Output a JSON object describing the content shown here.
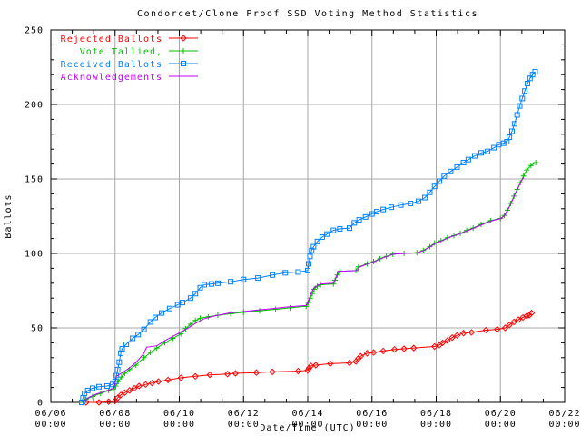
{
  "chart_data": {
    "type": "line",
    "title": "Condorcet/Clone Proof SSD Voting Method Statistics",
    "xlabel": "Date/Time (UTC)",
    "ylabel": "Ballots",
    "x_unit_days_since": "06/06 00:00",
    "xlim": [
      0,
      16
    ],
    "ylim": [
      0,
      250
    ],
    "grid": true,
    "grid_color": "#a8a8a8",
    "border_color": "#000000",
    "legend_position": "top-left-inside",
    "y_ticks": [
      "0",
      "50",
      "100",
      "150",
      "200",
      "250"
    ],
    "y_tick_values": [
      0,
      50,
      100,
      150,
      200,
      250
    ],
    "y_minor_step": 10,
    "x_ticks": [
      {
        "day": 0,
        "label": "06/06",
        "sublabel": "00:00"
      },
      {
        "day": 2,
        "label": "06/08",
        "sublabel": "00:00"
      },
      {
        "day": 4,
        "label": "06/10",
        "sublabel": "00:00"
      },
      {
        "day": 6,
        "label": "06/12",
        "sublabel": "00:00"
      },
      {
        "day": 8,
        "label": "06/14",
        "sublabel": "00:00"
      },
      {
        "day": 10,
        "label": "06/16",
        "sublabel": "00:00"
      },
      {
        "day": 12,
        "label": "06/18",
        "sublabel": "00:00"
      },
      {
        "day": 14,
        "label": "06/20",
        "sublabel": "00:00"
      },
      {
        "day": 16,
        "label": "06/22",
        "sublabel": "00:00"
      }
    ],
    "x_minor_ticks_per_major": 2,
    "series": [
      {
        "name": "Rejected Ballots",
        "color": "#ff0000",
        "marker": "diamond",
        "points": [
          [
            1.1,
            0
          ],
          [
            1.5,
            0
          ],
          [
            1.8,
            0.5
          ],
          [
            2.0,
            1
          ],
          [
            2.08,
            3
          ],
          [
            2.18,
            5
          ],
          [
            2.3,
            6.5
          ],
          [
            2.45,
            8
          ],
          [
            2.6,
            9.5
          ],
          [
            2.75,
            11
          ],
          [
            2.95,
            12
          ],
          [
            3.15,
            13
          ],
          [
            3.35,
            14
          ],
          [
            3.65,
            15
          ],
          [
            4.05,
            16.5
          ],
          [
            4.5,
            17.5
          ],
          [
            4.95,
            18.5
          ],
          [
            5.5,
            19
          ],
          [
            5.75,
            19.5
          ],
          [
            6.4,
            20
          ],
          [
            6.9,
            20.5
          ],
          [
            7.7,
            21
          ],
          [
            8.0,
            21.5
          ],
          [
            8.04,
            23
          ],
          [
            8.1,
            24.5
          ],
          [
            8.25,
            25
          ],
          [
            8.7,
            26
          ],
          [
            9.3,
            26.5
          ],
          [
            9.5,
            27.5
          ],
          [
            9.58,
            29.5
          ],
          [
            9.65,
            31
          ],
          [
            9.85,
            33
          ],
          [
            10.05,
            33.5
          ],
          [
            10.35,
            34.5
          ],
          [
            10.7,
            35.5
          ],
          [
            11.0,
            36
          ],
          [
            11.3,
            36.5
          ],
          [
            11.95,
            37.5
          ],
          [
            12.1,
            38.5
          ],
          [
            12.2,
            40
          ],
          [
            12.35,
            41.5
          ],
          [
            12.5,
            43.5
          ],
          [
            12.65,
            45
          ],
          [
            12.85,
            46.5
          ],
          [
            13.1,
            47
          ],
          [
            13.55,
            48.5
          ],
          [
            13.9,
            49
          ],
          [
            14.15,
            50
          ],
          [
            14.28,
            52
          ],
          [
            14.42,
            54
          ],
          [
            14.56,
            55.5
          ],
          [
            14.7,
            57
          ],
          [
            14.82,
            58
          ],
          [
            14.9,
            58.5
          ],
          [
            14.97,
            60
          ]
        ]
      },
      {
        "name": "Vote Tallied,",
        "color": "#00c000",
        "marker": "plus",
        "points": [
          [
            1.0,
            0
          ],
          [
            1.1,
            2
          ],
          [
            1.3,
            4
          ],
          [
            1.55,
            6
          ],
          [
            1.8,
            8
          ],
          [
            1.95,
            9
          ],
          [
            2.02,
            11
          ],
          [
            2.1,
            14
          ],
          [
            2.2,
            17
          ],
          [
            2.3,
            19.5
          ],
          [
            2.45,
            22
          ],
          [
            2.65,
            25
          ],
          [
            2.9,
            30
          ],
          [
            3.1,
            33.5
          ],
          [
            3.3,
            36.5
          ],
          [
            3.55,
            40
          ],
          [
            3.8,
            43
          ],
          [
            4.05,
            46
          ],
          [
            4.2,
            49.5
          ],
          [
            4.35,
            52.5
          ],
          [
            4.5,
            55
          ],
          [
            4.65,
            56.5
          ],
          [
            4.9,
            57.5
          ],
          [
            5.2,
            58.5
          ],
          [
            5.6,
            59.5
          ],
          [
            6.0,
            60.5
          ],
          [
            6.5,
            61.5
          ],
          [
            7.0,
            62.5
          ],
          [
            7.45,
            63.5
          ],
          [
            7.95,
            64.5
          ],
          [
            8.02,
            67
          ],
          [
            8.08,
            70
          ],
          [
            8.14,
            73
          ],
          [
            8.2,
            76
          ],
          [
            8.3,
            78
          ],
          [
            8.4,
            79
          ],
          [
            8.8,
            79.5
          ],
          [
            8.85,
            82
          ],
          [
            8.92,
            85.5
          ],
          [
            9.0,
            88
          ],
          [
            9.5,
            88.5
          ],
          [
            9.58,
            91
          ],
          [
            9.85,
            93
          ],
          [
            10.05,
            94.5
          ],
          [
            10.25,
            96.5
          ],
          [
            10.45,
            98
          ],
          [
            10.65,
            99.5
          ],
          [
            11.0,
            100
          ],
          [
            11.4,
            100.5
          ],
          [
            11.6,
            102
          ],
          [
            11.8,
            104.5
          ],
          [
            11.95,
            107
          ],
          [
            12.15,
            108.5
          ],
          [
            12.35,
            110.5
          ],
          [
            12.55,
            112
          ],
          [
            12.75,
            113.5
          ],
          [
            12.95,
            115.5
          ],
          [
            13.15,
            117
          ],
          [
            13.4,
            119.5
          ],
          [
            13.7,
            122
          ],
          [
            14.0,
            123.5
          ],
          [
            14.12,
            125.5
          ],
          [
            14.22,
            129
          ],
          [
            14.32,
            133.5
          ],
          [
            14.42,
            138.5
          ],
          [
            14.52,
            143
          ],
          [
            14.62,
            147.5
          ],
          [
            14.72,
            152
          ],
          [
            14.82,
            156
          ],
          [
            14.95,
            159
          ],
          [
            15.1,
            161
          ]
        ]
      },
      {
        "name": "Received Ballots",
        "color": "#0080ff",
        "marker": "square",
        "points": [
          [
            0.96,
            0
          ],
          [
            1.0,
            3
          ],
          [
            1.05,
            6
          ],
          [
            1.15,
            8
          ],
          [
            1.3,
            9.5
          ],
          [
            1.5,
            10.5
          ],
          [
            1.75,
            11
          ],
          [
            1.92,
            12
          ],
          [
            2.0,
            14
          ],
          [
            2.04,
            18
          ],
          [
            2.08,
            22
          ],
          [
            2.13,
            27
          ],
          [
            2.18,
            33
          ],
          [
            2.22,
            36
          ],
          [
            2.35,
            39
          ],
          [
            2.55,
            43
          ],
          [
            2.72,
            45.5
          ],
          [
            2.9,
            49
          ],
          [
            3.1,
            54
          ],
          [
            3.25,
            57
          ],
          [
            3.45,
            60
          ],
          [
            3.7,
            63
          ],
          [
            3.95,
            65.5
          ],
          [
            4.1,
            67
          ],
          [
            4.35,
            70
          ],
          [
            4.5,
            73
          ],
          [
            4.65,
            77
          ],
          [
            4.78,
            79
          ],
          [
            5.0,
            79.5
          ],
          [
            5.2,
            80
          ],
          [
            5.6,
            81
          ],
          [
            6.0,
            82.5
          ],
          [
            6.45,
            83.5
          ],
          [
            6.9,
            85.5
          ],
          [
            7.3,
            87
          ],
          [
            7.7,
            87.5
          ],
          [
            8.0,
            88.5
          ],
          [
            8.03,
            93
          ],
          [
            8.07,
            98
          ],
          [
            8.12,
            102
          ],
          [
            8.18,
            104.5
          ],
          [
            8.3,
            108
          ],
          [
            8.45,
            111
          ],
          [
            8.6,
            113
          ],
          [
            8.8,
            115.5
          ],
          [
            9.0,
            116.5
          ],
          [
            9.3,
            117
          ],
          [
            9.45,
            120.5
          ],
          [
            9.6,
            122.5
          ],
          [
            9.8,
            124.5
          ],
          [
            10.0,
            126.5
          ],
          [
            10.15,
            128
          ],
          [
            10.35,
            129.5
          ],
          [
            10.6,
            131
          ],
          [
            10.9,
            132.5
          ],
          [
            11.2,
            133.5
          ],
          [
            11.45,
            135
          ],
          [
            11.65,
            137.5
          ],
          [
            11.8,
            141
          ],
          [
            11.95,
            145
          ],
          [
            12.1,
            148.5
          ],
          [
            12.25,
            152
          ],
          [
            12.45,
            155
          ],
          [
            12.65,
            158
          ],
          [
            12.85,
            161
          ],
          [
            13.0,
            163
          ],
          [
            13.2,
            165.5
          ],
          [
            13.4,
            167.5
          ],
          [
            13.6,
            168.5
          ],
          [
            13.8,
            171
          ],
          [
            13.95,
            173
          ],
          [
            14.1,
            174
          ],
          [
            14.2,
            175
          ],
          [
            14.28,
            178
          ],
          [
            14.36,
            182
          ],
          [
            14.44,
            187
          ],
          [
            14.52,
            193
          ],
          [
            14.6,
            199
          ],
          [
            14.68,
            204
          ],
          [
            14.76,
            209
          ],
          [
            14.84,
            214
          ],
          [
            14.92,
            217.5
          ],
          [
            15.0,
            220
          ],
          [
            15.08,
            222
          ]
        ]
      },
      {
        "name": "Acknowledgements",
        "color": "#c000ff",
        "marker": "none",
        "points": [
          [
            1.0,
            0
          ],
          [
            1.15,
            3
          ],
          [
            1.4,
            5.5
          ],
          [
            1.7,
            7.5
          ],
          [
            1.95,
            9.5
          ],
          [
            2.0,
            13
          ],
          [
            2.04,
            17.5
          ],
          [
            2.15,
            19
          ],
          [
            2.3,
            21
          ],
          [
            2.5,
            24
          ],
          [
            2.7,
            28
          ],
          [
            2.9,
            33
          ],
          [
            2.98,
            37
          ],
          [
            3.3,
            38
          ],
          [
            3.6,
            42
          ],
          [
            3.9,
            45.5
          ],
          [
            4.2,
            49
          ],
          [
            4.5,
            53
          ],
          [
            4.75,
            56
          ],
          [
            5.1,
            58
          ],
          [
            5.55,
            60
          ],
          [
            6.0,
            61
          ],
          [
            6.45,
            62
          ],
          [
            6.9,
            63
          ],
          [
            7.35,
            64
          ],
          [
            7.95,
            65
          ],
          [
            8.04,
            69
          ],
          [
            8.1,
            73
          ],
          [
            8.18,
            76.5
          ],
          [
            8.3,
            78.5
          ],
          [
            8.4,
            79.5
          ],
          [
            8.8,
            80
          ],
          [
            8.88,
            84
          ],
          [
            8.95,
            88
          ],
          [
            9.55,
            88.5
          ],
          [
            9.62,
            91
          ],
          [
            9.88,
            93
          ],
          [
            10.08,
            94.5
          ],
          [
            10.28,
            96.5
          ],
          [
            10.48,
            98
          ],
          [
            10.68,
            99.5
          ],
          [
            11.05,
            100
          ],
          [
            11.42,
            100.5
          ],
          [
            11.62,
            102
          ],
          [
            11.82,
            104.5
          ],
          [
            12.0,
            107
          ],
          [
            12.18,
            108.5
          ],
          [
            12.38,
            110.5
          ],
          [
            12.58,
            112
          ],
          [
            12.78,
            113.5
          ],
          [
            13.0,
            115.5
          ],
          [
            13.18,
            117
          ],
          [
            13.45,
            119.5
          ],
          [
            13.75,
            122
          ],
          [
            14.02,
            123.5
          ],
          [
            14.15,
            126
          ],
          [
            14.25,
            130
          ],
          [
            14.35,
            134.5
          ],
          [
            14.45,
            139.5
          ],
          [
            14.55,
            144
          ],
          [
            14.65,
            148.5
          ],
          [
            14.72,
            151
          ]
        ]
      }
    ]
  }
}
